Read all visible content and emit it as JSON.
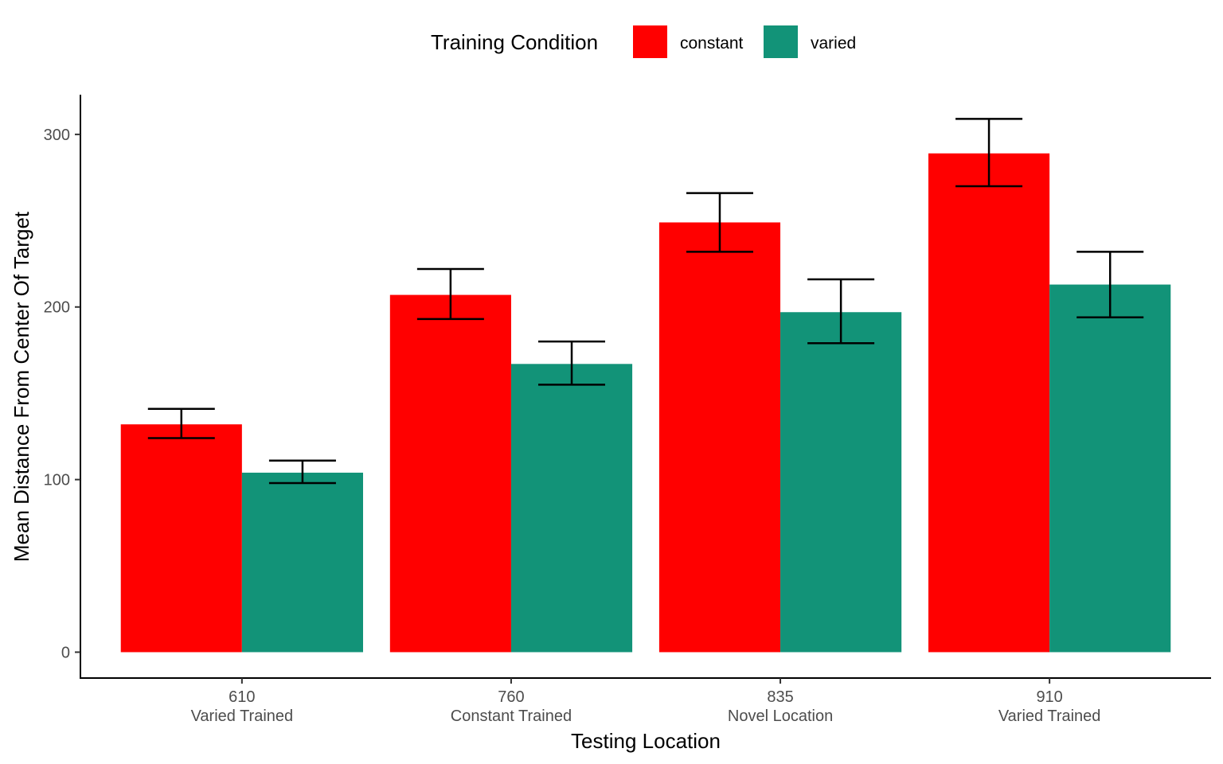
{
  "chart_data": {
    "type": "bar",
    "title": "",
    "xlabel": "Testing Location",
    "ylabel": "Mean Distance From Center Of Target",
    "ylim": [
      -15,
      323
    ],
    "yticks": [
      0,
      100,
      200,
      300
    ],
    "categories": [
      {
        "value": "610",
        "sublabel": "Varied Trained"
      },
      {
        "value": "760",
        "sublabel": "Constant Trained"
      },
      {
        "value": "835",
        "sublabel": "Novel Location"
      },
      {
        "value": "910",
        "sublabel": "Varied Trained"
      }
    ],
    "legend": {
      "title": "Training Condition",
      "position": "top"
    },
    "series": [
      {
        "name": "constant",
        "color": "#ff0000",
        "values": [
          132,
          207,
          249,
          289
        ],
        "error_low": [
          124,
          193,
          232,
          270
        ],
        "error_high": [
          141,
          222,
          266,
          309
        ]
      },
      {
        "name": "varied",
        "color": "#129378",
        "values": [
          104,
          167,
          197,
          213
        ],
        "error_low": [
          98,
          155,
          179,
          194
        ],
        "error_high": [
          111,
          180,
          216,
          232
        ]
      }
    ],
    "grid": false
  }
}
